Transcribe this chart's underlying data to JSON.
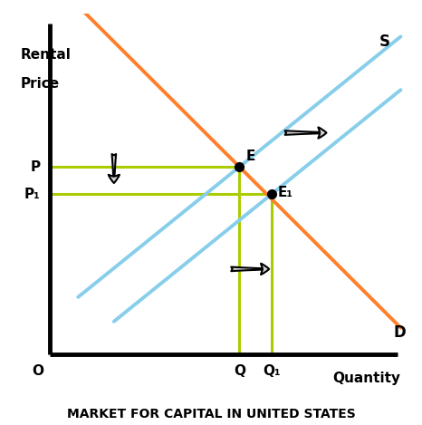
{
  "title": "MARKET FOR CAPITAL IN UNITED STATES",
  "xlabel": "Quantity",
  "ylabel_line1": "Rental",
  "ylabel_line2": "Price",
  "origin_label": "O",
  "xlim": [
    0,
    10
  ],
  "ylim": [
    0,
    10
  ],
  "demand_color": "#FF7F2A",
  "supply_color": "#87CEEB",
  "dashed_color": "#AACC00",
  "P_label": "P",
  "P1_label": "P₁",
  "Q_label": "Q",
  "Q1_label": "Q₁",
  "E_label": "E",
  "E1_label": "E₁",
  "S_label": "S",
  "D_label": "D",
  "P_val": 5.5,
  "P1_val": 4.7,
  "Q_val": 5.3,
  "Q1_val": 6.2,
  "s_slope": 1.0,
  "d_slope": -1.0
}
